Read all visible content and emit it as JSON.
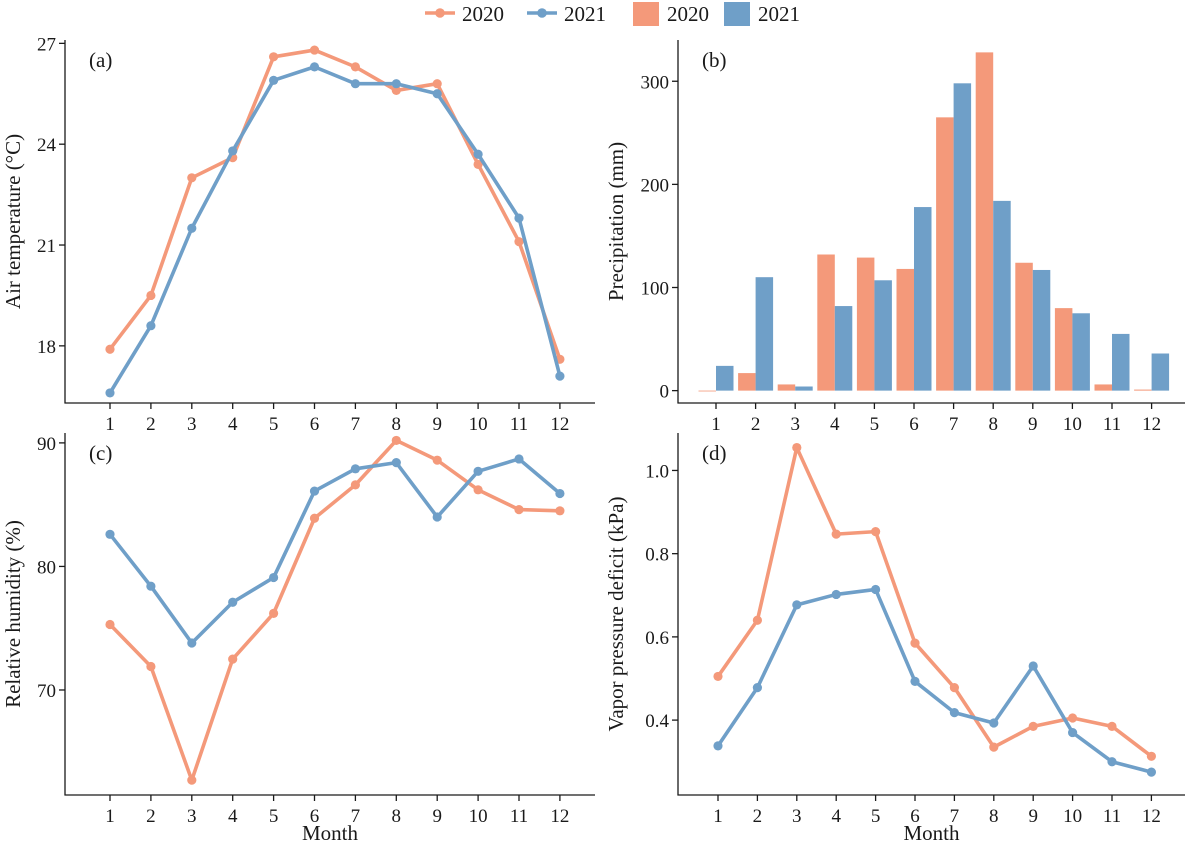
{
  "legend": {
    "items": [
      {
        "label": "2020",
        "kind": "line",
        "color": "#F4997A"
      },
      {
        "label": "2021",
        "kind": "line",
        "color": "#6F9FC8"
      },
      {
        "label": "2020",
        "kind": "bar",
        "color": "#F4997A"
      },
      {
        "label": "2021",
        "kind": "bar",
        "color": "#6F9FC8"
      }
    ]
  },
  "colors": {
    "y2020": "#F4997A",
    "y2021": "#6F9FC8",
    "axis": "#1a1a1a"
  },
  "chart_data": [
    {
      "type": "line",
      "panel_label": "(a)",
      "xlabel": "",
      "ylabel": "Air temperature (°C)",
      "categories": [
        "1",
        "2",
        "3",
        "4",
        "5",
        "6",
        "7",
        "8",
        "9",
        "10",
        "11",
        "12"
      ],
      "yticks": [
        "18",
        "21",
        "24",
        "27"
      ],
      "ylim": [
        16.3,
        27.1
      ],
      "series": [
        {
          "name": "2020",
          "values": [
            17.9,
            19.5,
            23.0,
            23.6,
            26.6,
            26.8,
            26.3,
            25.6,
            25.8,
            23.4,
            21.1,
            17.6
          ]
        },
        {
          "name": "2021",
          "values": [
            16.6,
            18.6,
            21.5,
            23.8,
            25.9,
            26.3,
            25.8,
            25.8,
            25.5,
            23.7,
            21.8,
            17.1
          ]
        }
      ]
    },
    {
      "type": "bar",
      "panel_label": "(b)",
      "xlabel": "",
      "ylabel": "Precipitation (mm)",
      "categories": [
        "1",
        "2",
        "3",
        "4",
        "5",
        "6",
        "7",
        "8",
        "9",
        "10",
        "11",
        "12"
      ],
      "yticks": [
        "0",
        "100",
        "200",
        "300"
      ],
      "ylim": [
        -12,
        340
      ],
      "series": [
        {
          "name": "2020",
          "values": [
            0,
            17,
            6,
            132,
            129,
            118,
            265,
            328,
            124,
            80,
            6,
            1
          ]
        },
        {
          "name": "2021",
          "values": [
            24,
            110,
            4,
            82,
            107,
            178,
            298,
            184,
            117,
            75,
            55,
            36
          ]
        }
      ]
    },
    {
      "type": "line",
      "panel_label": "(c)",
      "xlabel": "Month",
      "ylabel": "Relative humidity (%)",
      "categories": [
        "1",
        "2",
        "3",
        "4",
        "5",
        "6",
        "7",
        "8",
        "9",
        "10",
        "11",
        "12"
      ],
      "yticks": [
        "70",
        "80",
        "90"
      ],
      "ylim": [
        61.5,
        90.8
      ],
      "series": [
        {
          "name": "2020",
          "values": [
            75.3,
            71.9,
            62.7,
            72.5,
            76.2,
            83.9,
            86.6,
            90.2,
            88.6,
            86.2,
            84.6,
            84.5
          ]
        },
        {
          "name": "2021",
          "values": [
            82.6,
            78.4,
            73.8,
            77.1,
            79.1,
            86.1,
            87.9,
            88.4,
            84.0,
            87.7,
            88.7,
            85.9
          ]
        }
      ]
    },
    {
      "type": "line",
      "panel_label": "(d)",
      "xlabel": "Month",
      "ylabel": "Vapor pressure deficit (kPa)",
      "categories": [
        "1",
        "2",
        "3",
        "4",
        "5",
        "6",
        "7",
        "8",
        "9",
        "10",
        "11",
        "12"
      ],
      "yticks": [
        "0.4",
        "0.6",
        "0.8",
        "1.0"
      ],
      "ylim": [
        0.22,
        1.09
      ],
      "series": [
        {
          "name": "2020",
          "values": [
            0.505,
            0.64,
            1.055,
            0.847,
            0.853,
            0.585,
            0.478,
            0.335,
            0.385,
            0.405,
            0.385,
            0.313
          ]
        },
        {
          "name": "2021",
          "values": [
            0.338,
            0.478,
            0.677,
            0.702,
            0.714,
            0.493,
            0.418,
            0.393,
            0.53,
            0.37,
            0.3,
            0.275
          ]
        }
      ]
    }
  ]
}
